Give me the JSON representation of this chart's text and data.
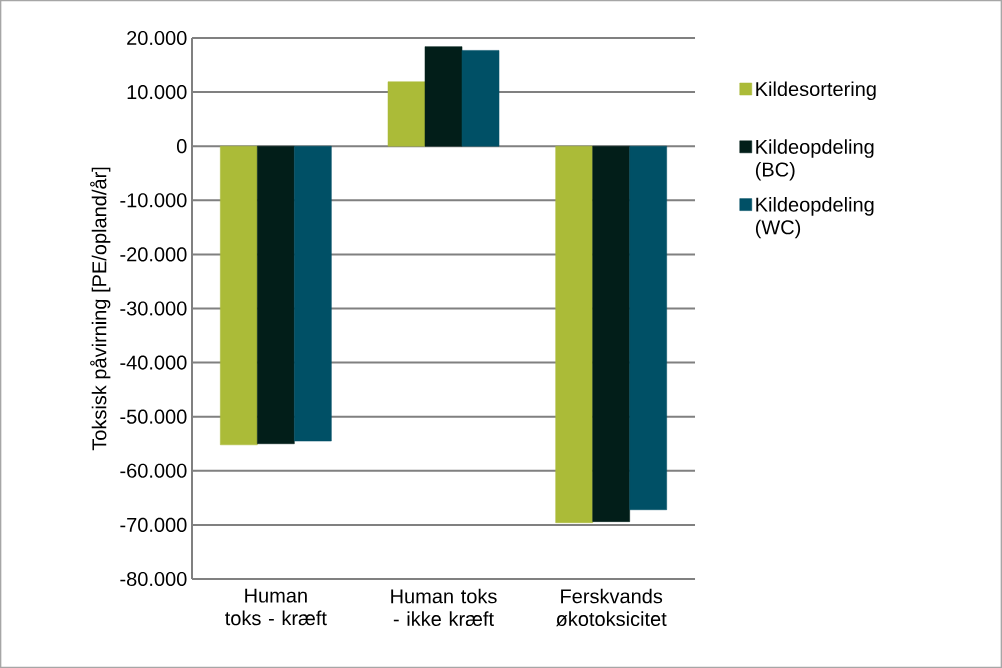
{
  "chart_data": {
    "type": "bar",
    "ylabel": "Toksisk påvirning [PE/opland/år]",
    "categories": [
      "Human toks - kræft",
      "Human toks - ikke kræft",
      "Ferskvands økotoksicitet"
    ],
    "series": [
      {
        "name": "Kildesortering",
        "color": "#abbb38",
        "values": [
          -55200,
          11900,
          -69600
        ]
      },
      {
        "name": "Kildeopdeling (BC)",
        "color": "#021e19",
        "values": [
          -55000,
          18400,
          -69400
        ]
      },
      {
        "name": "Kildeopdeling (WC)",
        "color": "#005066",
        "values": [
          -54500,
          17700,
          -67200
        ]
      }
    ],
    "ylim": [
      -80000,
      20000
    ],
    "yticks": [
      {
        "value": -80000,
        "label": "-80.000"
      },
      {
        "value": -70000,
        "label": "-70.000"
      },
      {
        "value": -60000,
        "label": "-60.000"
      },
      {
        "value": -50000,
        "label": "-50.000"
      },
      {
        "value": -40000,
        "label": "-40.000"
      },
      {
        "value": -30000,
        "label": "-30.000"
      },
      {
        "value": -20000,
        "label": "-20.000"
      },
      {
        "value": -10000,
        "label": "-10.000"
      },
      0,
      {
        "value": 10000,
        "label": "10.000"
      },
      {
        "value": 20000,
        "label": "20.000"
      }
    ],
    "grid": "y",
    "legend": "right"
  }
}
